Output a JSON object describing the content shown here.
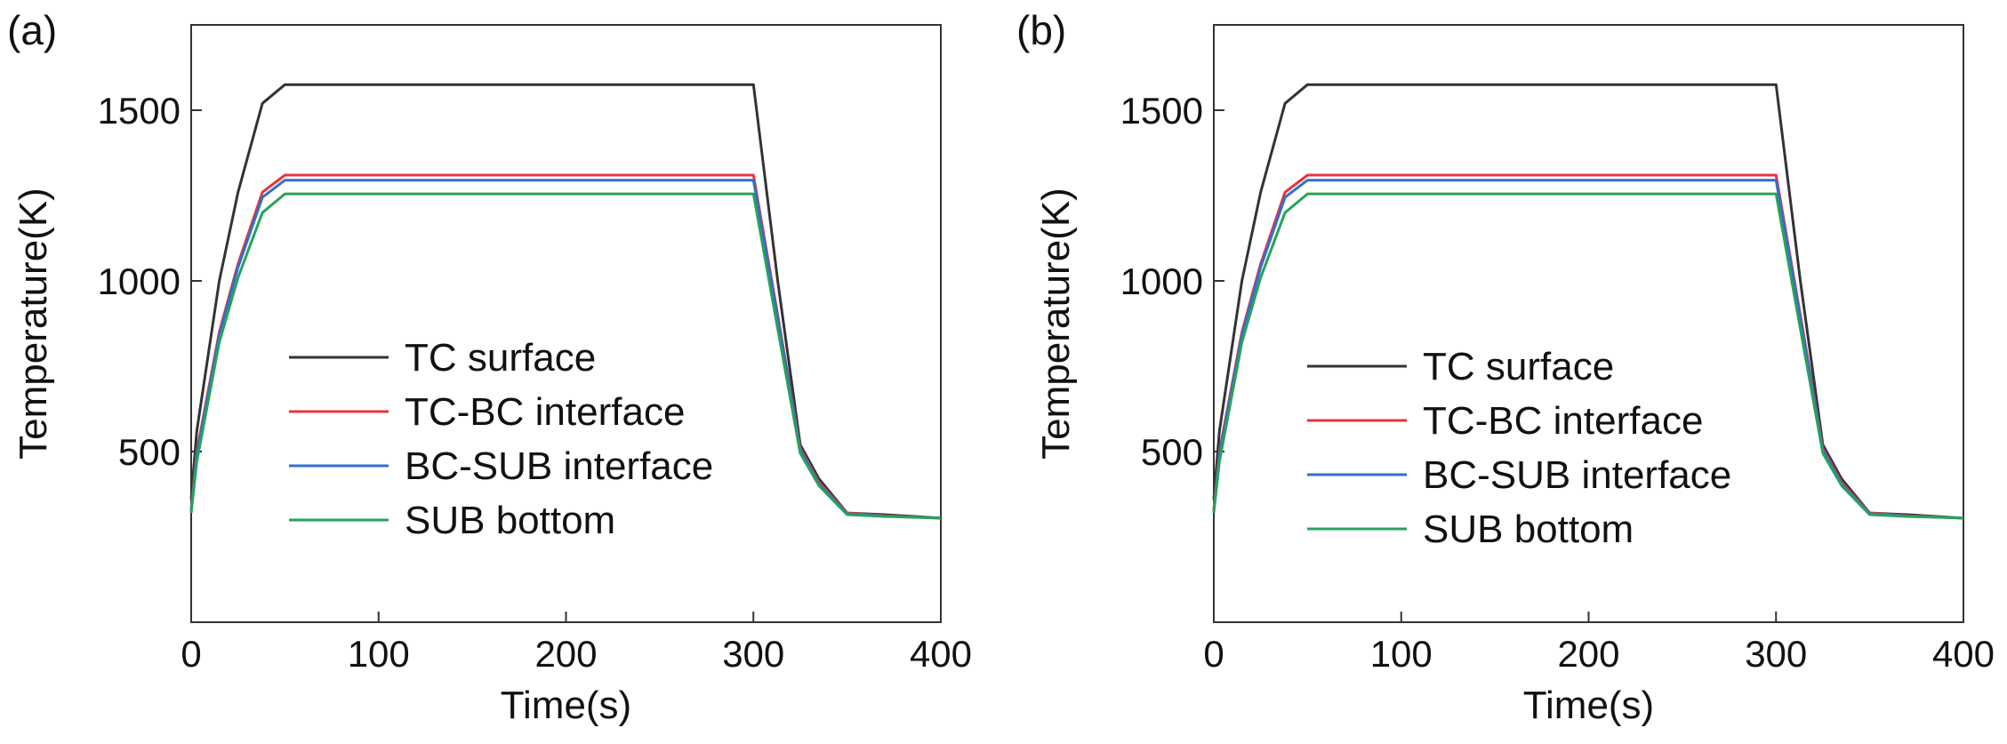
{
  "chart_data": [
    {
      "type": "line",
      "panel_label": "(a)",
      "title": "",
      "xlabel": "Time(s)",
      "ylabel": "Temperature(K)",
      "xlim": [
        0,
        400
      ],
      "ylim": [
        0,
        1750
      ],
      "xticks": [
        0,
        100,
        200,
        300,
        400
      ],
      "yticks": [
        500,
        1000,
        1500
      ],
      "grid": false,
      "legend_position": "center-left",
      "series": [
        {
          "name": "TC surface",
          "color": "#333333",
          "x": [
            0,
            3,
            15,
            25,
            38,
            50,
            300,
            313,
            325,
            335,
            350,
            370,
            400
          ],
          "y": [
            360,
            560,
            1000,
            1260,
            1520,
            1575,
            1575,
            1000,
            520,
            420,
            320,
            315,
            305
          ]
        },
        {
          "name": "TC-BC interface",
          "color": "#e8343c",
          "x": [
            0,
            3,
            15,
            25,
            38,
            50,
            300,
            313,
            325,
            335,
            350,
            370,
            400
          ],
          "y": [
            330,
            500,
            850,
            1050,
            1260,
            1310,
            1310,
            900,
            510,
            410,
            320,
            312,
            305
          ]
        },
        {
          "name": "BC-SUB interface",
          "color": "#2f6fd0",
          "x": [
            0,
            3,
            15,
            25,
            38,
            50,
            300,
            313,
            325,
            335,
            350,
            370,
            400
          ],
          "y": [
            325,
            490,
            840,
            1040,
            1245,
            1295,
            1295,
            890,
            505,
            405,
            318,
            311,
            305
          ]
        },
        {
          "name": "SUB bottom",
          "color": "#27a35a",
          "x": [
            0,
            3,
            15,
            25,
            38,
            50,
            300,
            313,
            325,
            335,
            350,
            370,
            400
          ],
          "y": [
            320,
            470,
            820,
            1010,
            1200,
            1255,
            1255,
            860,
            495,
            400,
            315,
            310,
            305
          ]
        }
      ]
    },
    {
      "type": "line",
      "panel_label": "(b)",
      "title": "",
      "xlabel": "Time(s)",
      "ylabel": "Temperature(K)",
      "xlim": [
        0,
        400
      ],
      "ylim": [
        0,
        1750
      ],
      "xticks": [
        0,
        100,
        200,
        300,
        400
      ],
      "yticks": [
        500,
        1000,
        1500
      ],
      "grid": false,
      "legend_position": "center-left",
      "series": [
        {
          "name": "TC surface",
          "color": "#333333",
          "x": [
            0,
            3,
            15,
            25,
            38,
            50,
            300,
            313,
            325,
            335,
            350,
            370,
            400
          ],
          "y": [
            360,
            560,
            1000,
            1260,
            1520,
            1575,
            1575,
            1000,
            520,
            420,
            320,
            315,
            305
          ]
        },
        {
          "name": "TC-BC interface",
          "color": "#e8343c",
          "x": [
            0,
            3,
            15,
            25,
            38,
            50,
            300,
            313,
            325,
            335,
            350,
            370,
            400
          ],
          "y": [
            330,
            500,
            850,
            1050,
            1260,
            1310,
            1310,
            900,
            510,
            410,
            320,
            312,
            305
          ]
        },
        {
          "name": "BC-SUB interface",
          "color": "#2f6fd0",
          "x": [
            0,
            3,
            15,
            25,
            38,
            50,
            300,
            313,
            325,
            335,
            350,
            370,
            400
          ],
          "y": [
            325,
            490,
            840,
            1040,
            1245,
            1295,
            1295,
            890,
            505,
            405,
            318,
            311,
            305
          ]
        },
        {
          "name": "SUB bottom",
          "color": "#27a35a",
          "x": [
            0,
            3,
            15,
            25,
            38,
            50,
            300,
            313,
            325,
            335,
            350,
            370,
            400
          ],
          "y": [
            320,
            470,
            820,
            1010,
            1200,
            1255,
            1255,
            860,
            495,
            400,
            315,
            310,
            305
          ]
        }
      ]
    }
  ]
}
